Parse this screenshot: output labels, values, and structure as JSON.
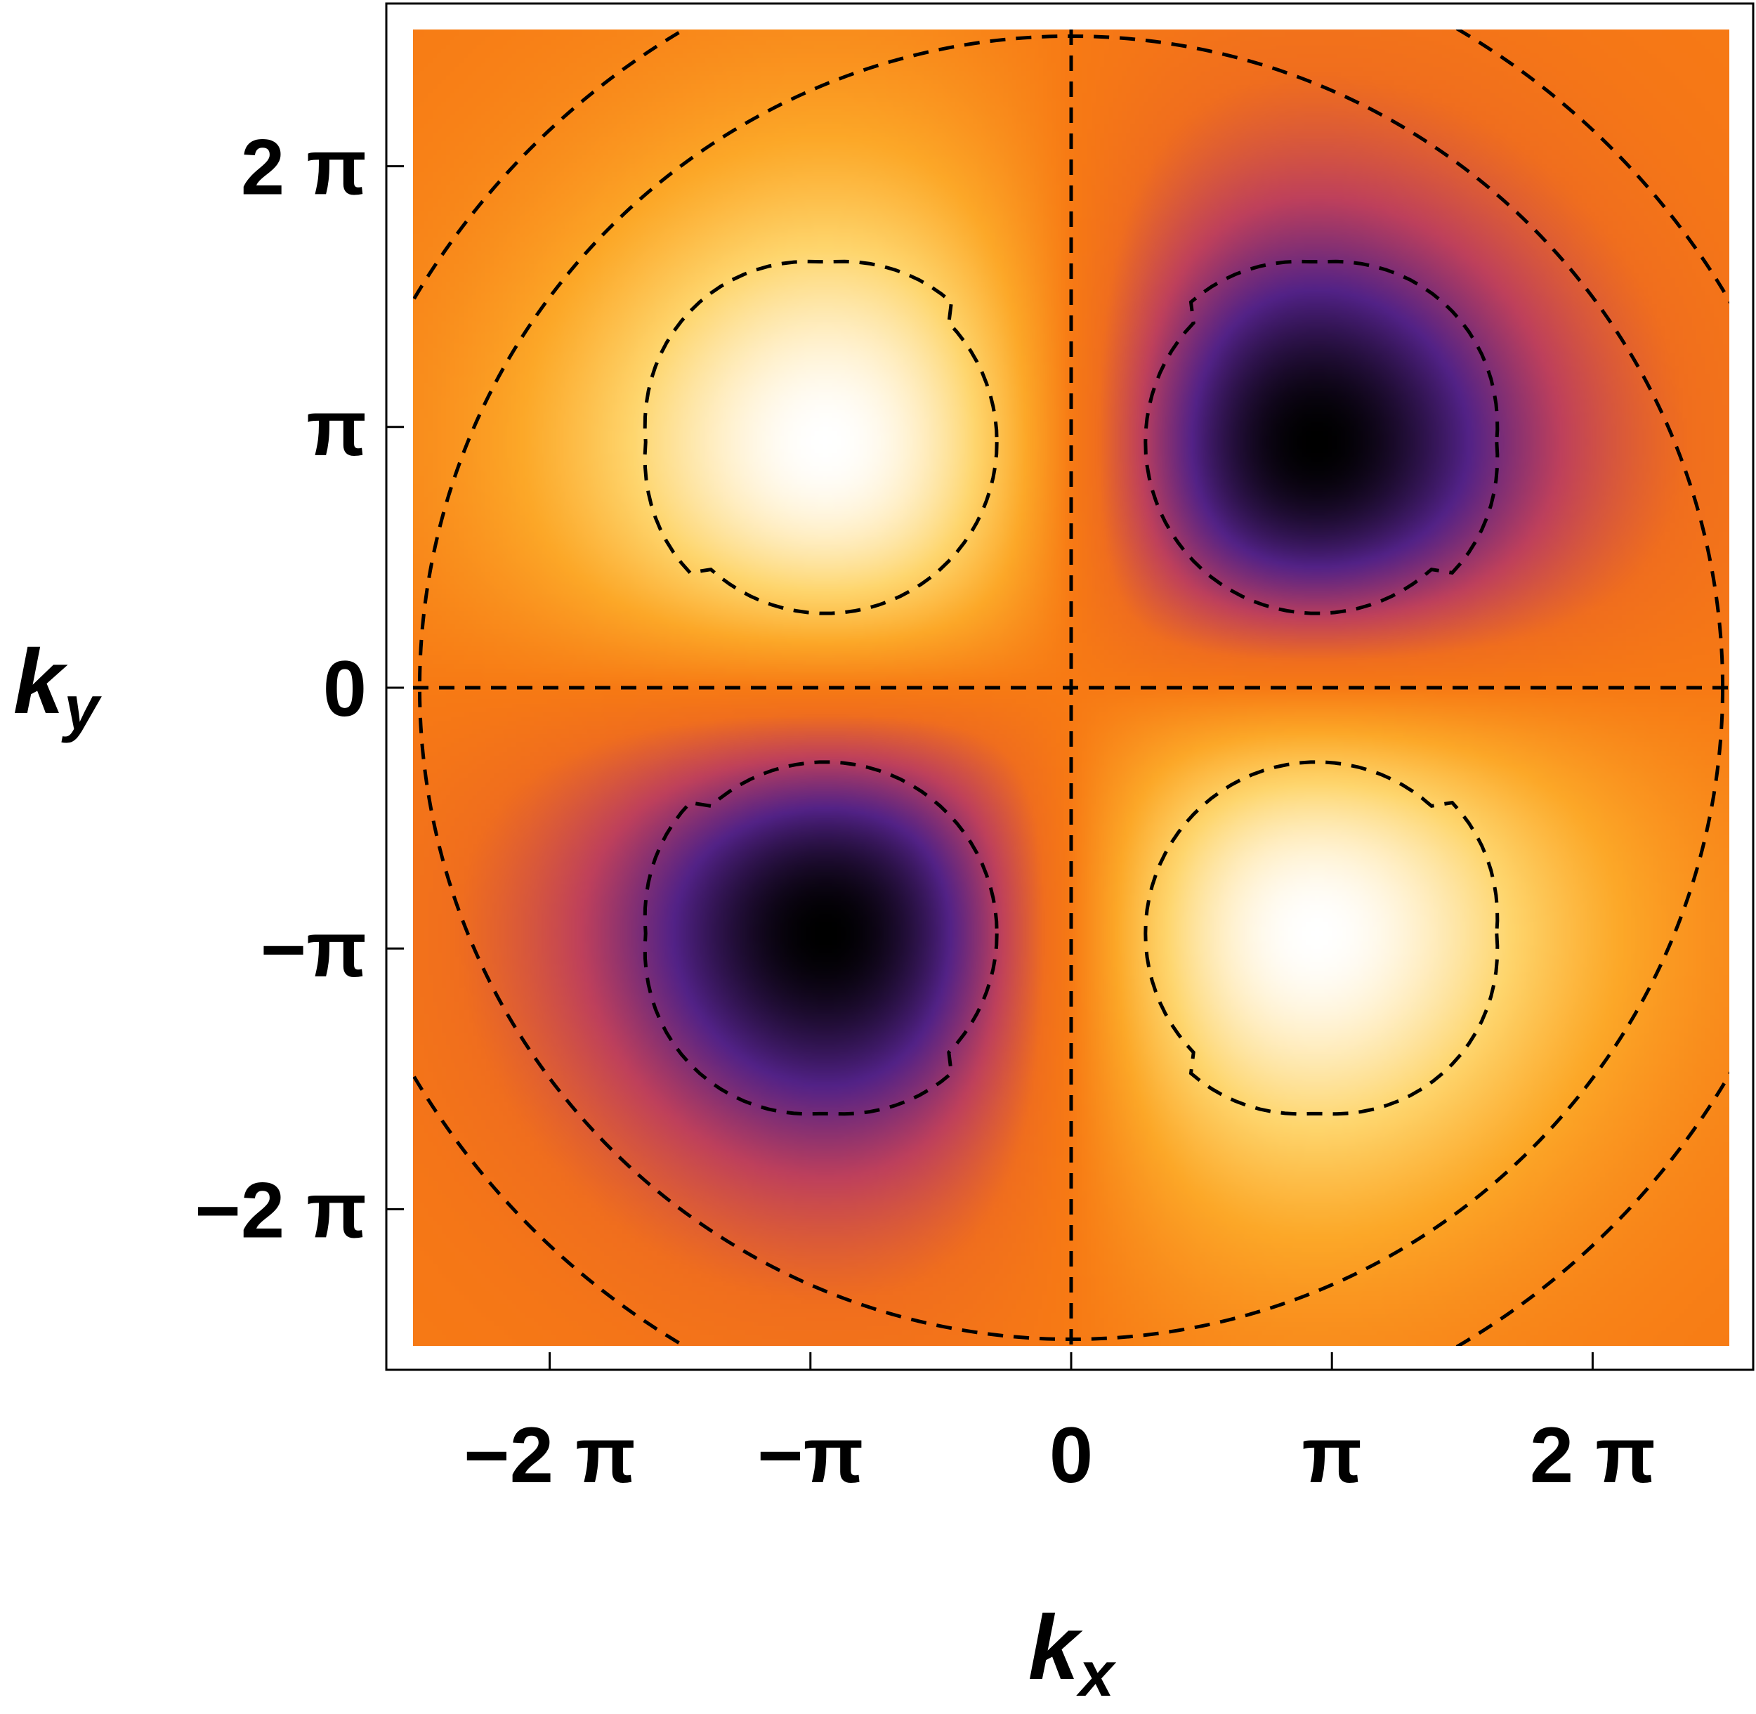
{
  "chart_data": {
    "type": "heatmap",
    "title": "",
    "xlabel": "k",
    "xlabel_sub": "x",
    "ylabel": "k",
    "ylabel_sub": "y",
    "x_range": [
      -7.93,
      7.93
    ],
    "y_range": [
      -7.93,
      7.93
    ],
    "x_ticks": [
      {
        "value": -6.2832,
        "label": "−2 π"
      },
      {
        "value": -3.1416,
        "label": "−π"
      },
      {
        "value": 0,
        "label": "0"
      },
      {
        "value": 3.1416,
        "label": "π"
      },
      {
        "value": 6.2832,
        "label": "2 π"
      }
    ],
    "y_ticks": [
      {
        "value": 6.2832,
        "label": "2 π"
      },
      {
        "value": 3.1416,
        "label": "π"
      },
      {
        "value": 0,
        "label": "0"
      },
      {
        "value": -3.1416,
        "label": "−π"
      },
      {
        "value": -6.2832,
        "label": "−2 π"
      }
    ],
    "grid": false,
    "legend": "none",
    "colormap": "sunset (black - purple - orange - white)",
    "extrema": [
      {
        "kind": "maximum",
        "x": -2.96,
        "y": 2.96
      },
      {
        "kind": "minimum",
        "x": 2.96,
        "y": 2.96
      },
      {
        "kind": "minimum",
        "x": -2.96,
        "y": -2.96
      },
      {
        "kind": "maximum",
        "x": 2.96,
        "y": -2.96
      }
    ],
    "contours_dashed": [
      {
        "shape": "line",
        "along": "x",
        "at": 0
      },
      {
        "shape": "line",
        "along": "y",
        "at": 0
      },
      {
        "shape": "circle",
        "radius": 7.85
      },
      {
        "shape": "circle",
        "radius": 9.2
      },
      {
        "shape": "closed",
        "around_extremum": 0
      },
      {
        "shape": "closed",
        "around_extremum": 1
      },
      {
        "shape": "closed",
        "around_extremum": 2
      },
      {
        "shape": "closed",
        "around_extremum": 3
      }
    ]
  },
  "colors": {
    "high": "#ffffff",
    "mid_high": "#fdd46a",
    "mid": "#f67a14",
    "mid_low": "#c0405a",
    "low_purple": "#5a2590",
    "low": "#000000",
    "contour": "#000000"
  }
}
